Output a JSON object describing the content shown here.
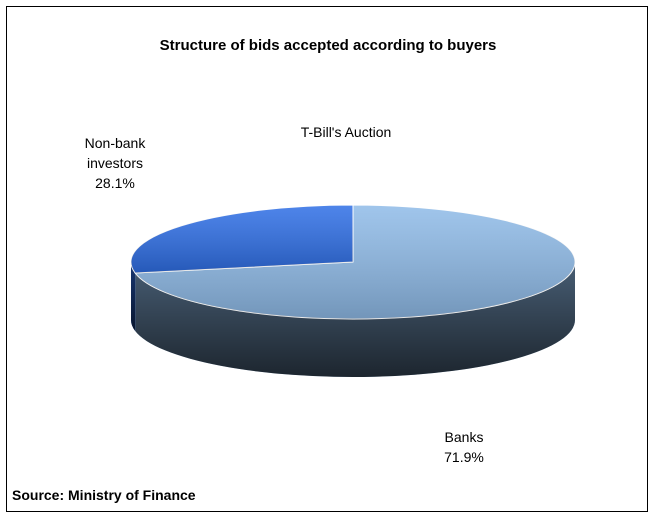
{
  "chart_data": {
    "type": "pie3d",
    "title": "Structure of bids accepted according to buyers",
    "subtitle": "T-Bill's Auction",
    "categories": [
      "Banks",
      "Non-bank investors"
    ],
    "values": [
      71.9,
      28.1
    ],
    "value_labels": [
      "71.9%",
      "28.1%"
    ],
    "colors": [
      "#8fbbe8",
      "#2f6fe6"
    ],
    "source": "Source: Ministry of Finance"
  }
}
